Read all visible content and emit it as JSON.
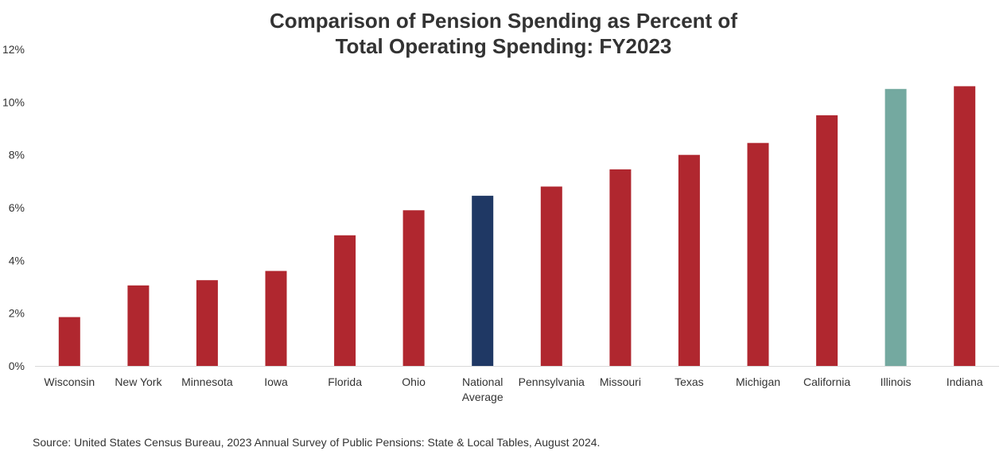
{
  "chart_data": {
    "type": "bar",
    "title_lines": [
      "Comparison of Pension Spending as Percent of",
      "Total Operating Spending: FY2023"
    ],
    "xlabel": "",
    "ylabel": "",
    "ylim": [
      0,
      12
    ],
    "yticks": [
      0,
      2,
      4,
      6,
      8,
      10,
      12
    ],
    "ytick_labels": [
      "0%",
      "2%",
      "4%",
      "6%",
      "8%",
      "10%",
      "12%"
    ],
    "grid": false,
    "legend": "none",
    "categories": [
      [
        "Wisconsin"
      ],
      [
        "New York"
      ],
      [
        "Minnesota"
      ],
      [
        "Iowa"
      ],
      [
        "Florida"
      ],
      [
        "Ohio"
      ],
      [
        "National",
        "Average"
      ],
      [
        "Pennsylvania"
      ],
      [
        "Missouri"
      ],
      [
        "Texas"
      ],
      [
        "Michigan"
      ],
      [
        "California"
      ],
      [
        "Illinois"
      ],
      [
        "Indiana"
      ]
    ],
    "values": [
      1.85,
      3.05,
      3.25,
      3.6,
      4.95,
      5.9,
      6.45,
      6.8,
      7.45,
      8.0,
      8.45,
      9.5,
      10.5,
      10.6
    ],
    "bar_colors": [
      "#b0272f",
      "#b0272f",
      "#b0272f",
      "#b0272f",
      "#b0272f",
      "#b0272f",
      "#1f3864",
      "#b0272f",
      "#b0272f",
      "#b0272f",
      "#b0272f",
      "#b0272f",
      "#74a9a0",
      "#b0272f"
    ],
    "axis_color": "#d9d9d9"
  },
  "source_note": "Source: United States Census Bureau, 2023 Annual Survey of Public Pensions: State & Local Tables, August 2024."
}
